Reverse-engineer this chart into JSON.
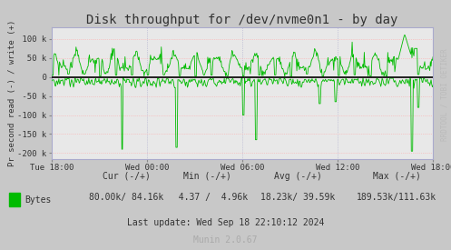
{
  "title": "Disk throughput for /dev/nvme0n1 - by day",
  "ylabel": "Pr second read (-) / write (+)",
  "bg_color": "#c8c8c8",
  "plot_bg_color": "#e8e8e8",
  "line_color": "#00bb00",
  "zero_line_color": "#000000",
  "grid_v_color": "#aaaacc",
  "grid_h_color": "#ffaaaa",
  "spine_color": "#aaaacc",
  "ylim": [
    -215000,
    130000
  ],
  "yticks": [
    -200000,
    -150000,
    -100000,
    -50000,
    0,
    50000,
    100000
  ],
  "ytick_labels": [
    "-200 k",
    "-150 k",
    "-100 k",
    " -50 k",
    "    0",
    "  50 k",
    " 100 k"
  ],
  "xtick_positions": [
    0.0,
    0.25,
    0.5,
    0.75,
    1.0
  ],
  "xtick_labels": [
    "Tue 18:00",
    "Wed 00:00",
    "Wed 06:00",
    "Wed 12:00",
    "Wed 18:00"
  ],
  "watermark": "RRDTOOL / TOBI OETIKER",
  "legend_label": "Bytes",
  "cur_neg": "80.00k",
  "cur_pos": "84.16k",
  "min_neg": "4.37",
  "min_pos": "4.96k",
  "avg_neg": "18.23k",
  "avg_pos": "39.59k",
  "max_neg": "189.53k",
  "max_pos": "111.63k",
  "last_update": "Last update: Wed Sep 18 22:10:12 2024",
  "munin_version": "Munin 2.0.67",
  "title_fontsize": 10,
  "axis_label_fontsize": 6.5,
  "tick_fontsize": 6.5,
  "legend_fontsize": 7,
  "watermark_fontsize": 5.5
}
